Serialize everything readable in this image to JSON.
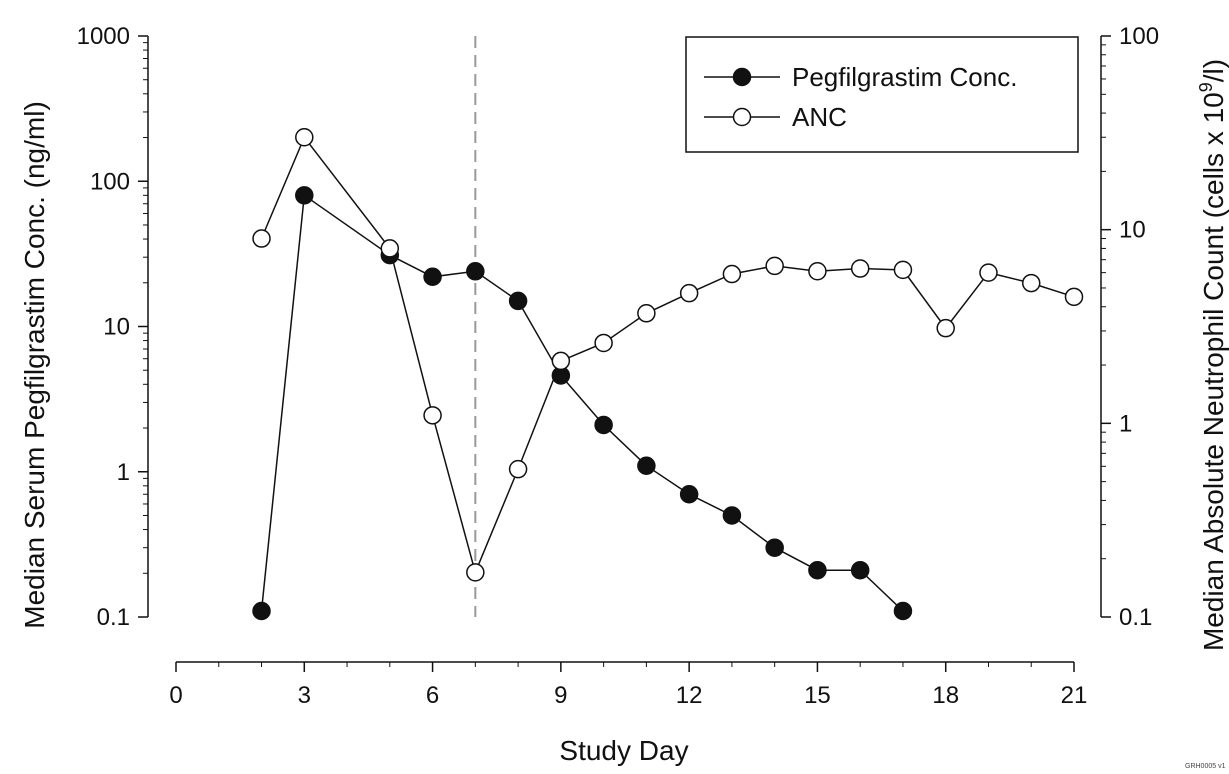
{
  "chart_data": {
    "type": "line",
    "xlabel": "Study Day",
    "ylabel_left": "Median Serum Pegfilgrastim Conc. (ng/ml)",
    "ylabel_right_prefix": "Median Absolute Neutrophil Count (cells x 10",
    "ylabel_right_exp": "9",
    "ylabel_right_suffix": "/l)",
    "xlim": [
      0,
      21
    ],
    "xticks": [
      0,
      3,
      6,
      9,
      12,
      15,
      18,
      21
    ],
    "ylim_left": [
      0.1,
      1000
    ],
    "yticks_left": [
      "0.1",
      "1",
      "10",
      "100",
      "1000"
    ],
    "ylim_right": [
      0.1,
      100
    ],
    "yticks_right": [
      "0.1",
      "1",
      "10",
      "100"
    ],
    "y_scale": "log",
    "reference_line": {
      "x": 7,
      "style": "dashed",
      "color": "#999999"
    },
    "legend": {
      "position": "top-right"
    },
    "series": [
      {
        "name": "Pegfilgrastim Conc.",
        "axis": "left",
        "marker": "filled-circle",
        "x": [
          2,
          3,
          5,
          6,
          7,
          8,
          9,
          10,
          11,
          12,
          13,
          14,
          15,
          16,
          17
        ],
        "y": [
          0.11,
          80,
          31,
          22,
          24,
          15,
          4.6,
          2.1,
          1.1,
          0.7,
          0.5,
          0.3,
          0.21,
          0.21,
          0.11
        ]
      },
      {
        "name": "ANC",
        "axis": "right",
        "marker": "open-circle",
        "x": [
          2,
          3,
          5,
          6,
          7,
          8,
          9,
          10,
          11,
          12,
          13,
          14,
          15,
          16,
          17,
          18,
          19,
          20,
          21
        ],
        "y": [
          9,
          30,
          8,
          1.1,
          0.17,
          0.58,
          2.1,
          2.6,
          3.7,
          4.7,
          5.9,
          6.5,
          6.1,
          6.3,
          6.2,
          3.1,
          6.0,
          5.3,
          4.5
        ]
      }
    ]
  },
  "footnote": "GRH0005 v1"
}
